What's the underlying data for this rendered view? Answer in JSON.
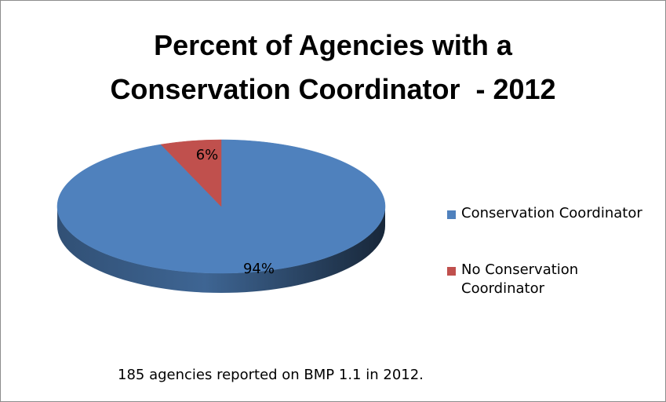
{
  "chart_data": {
    "type": "pie",
    "title_lines": [
      "Percent of Agencies with a",
      "Conservation Coordinator  - 2012"
    ],
    "slices": [
      {
        "label": "Conservation Coordinator",
        "value": 94,
        "data_label": "94%",
        "color": "#4f81bd"
      },
      {
        "label": "No Conservation Coordinator",
        "value": 6,
        "data_label": "6%",
        "color": "#c0504d"
      }
    ],
    "legend": {
      "placement": "right",
      "items": [
        {
          "lines": [
            "Conservation Coordinator"
          ],
          "color": "#4f81bd"
        },
        {
          "lines": [
            "No Conservation",
            "Coordinator"
          ],
          "color": "#c0504d"
        }
      ]
    },
    "style": "3d"
  },
  "footnote": "185 agencies reported on BMP 1.1 in 2012."
}
